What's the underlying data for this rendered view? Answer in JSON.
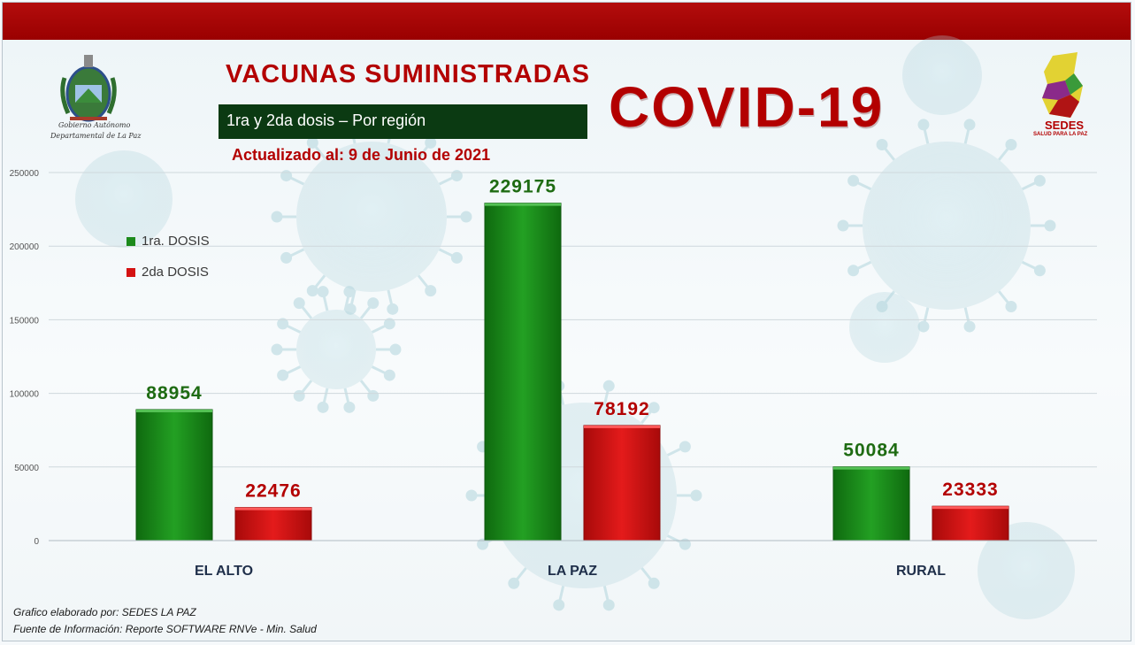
{
  "header": {
    "title": "VACUNAS  SUMINISTRADAS",
    "subtitle": "1ra y 2da dosis – Por región",
    "updated": "Actualizado al: 9 de Junio de 2021",
    "covid": "COVID-19"
  },
  "logos": {
    "left_line1": "Gobierno Autónomo",
    "left_line2": "Departamental de La Paz",
    "right_brand": "SEDES",
    "right_tagline": "SALUD PARA LA PAZ"
  },
  "colors": {
    "accent_red": "#b30000",
    "green_series": "#1c8a1c",
    "red_series": "#d41212",
    "dark_green_box": "#0b3a12"
  },
  "footer": {
    "line1": "Grafico elaborado por: SEDES LA PAZ",
    "line2": "Fuente de Información: Reporte SOFTWARE RNVe - Min. Salud"
  },
  "chart_data": {
    "type": "bar",
    "categories": [
      "EL ALTO",
      "LA PAZ",
      "RURAL"
    ],
    "series": [
      {
        "name": "1ra. DOSIS",
        "values": [
          88954,
          229175,
          50084
        ],
        "color": "#1c8a1c",
        "label_color": "#1e6b12"
      },
      {
        "name": "2da DOSIS",
        "values": [
          22476,
          78192,
          23333
        ],
        "color": "#d41212",
        "label_color": "#b30000"
      }
    ],
    "ylim": [
      0,
      250000
    ],
    "yticks": [
      0,
      50000,
      100000,
      150000,
      200000,
      250000
    ],
    "grid": true,
    "legend": "top-left",
    "xlabel": "",
    "ylabel": ""
  }
}
